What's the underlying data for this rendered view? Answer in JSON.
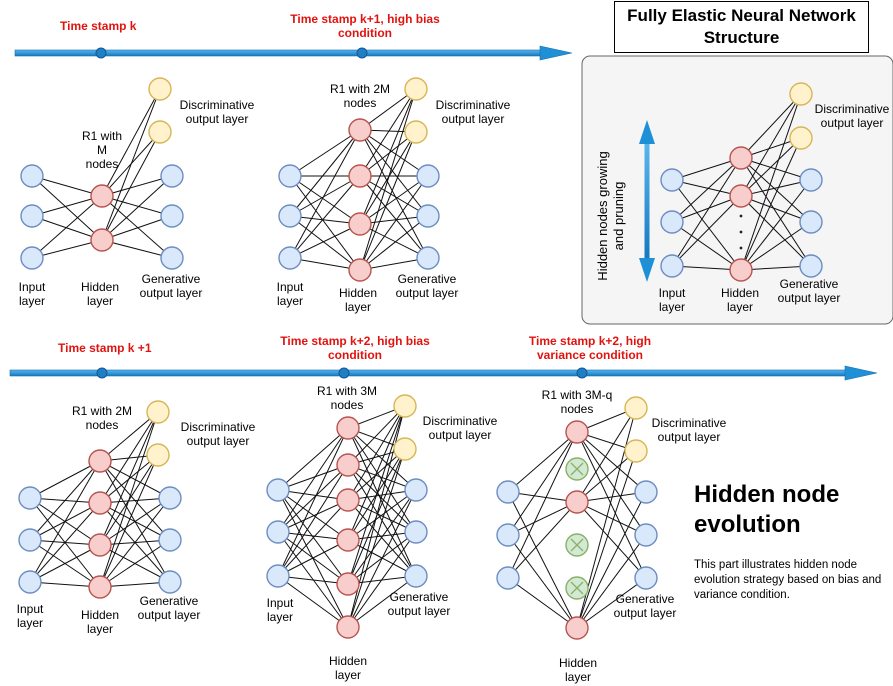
{
  "title": "Fully Elastic Neural Network Structure",
  "timeline_top": {
    "ts_k": "Time stamp k",
    "ts_k1_high_bias": "Time stamp k+1, high bias condition"
  },
  "timeline_bottom": {
    "ts_k1": "Time stamp k +1",
    "ts_k2_high_bias": "Time stamp k+2, high bias condition",
    "ts_k2_high_var": "Time stamp k+2, high variance condition"
  },
  "labels": {
    "input_layer": "Input layer",
    "hidden_layer": "Hidden layer",
    "generative_output": "Generative output layer",
    "discriminative_output": "Discriminative output layer",
    "r1_m": "R1 with M nodes",
    "r1_2m": "R1 with 2M nodes",
    "r1_3m": "R1 with 3M nodes",
    "r1_3mq": "R1 with 3M-q nodes",
    "growing_pruning": "Hidden nodes growing and pruning",
    "ellipsis": "·"
  },
  "section": {
    "heading": "Hidden node evolution",
    "description": "This part illustrates hidden node evolution strategy based on bias and variance condition."
  },
  "colors": {
    "input_fill": "#dae8fc",
    "input_stroke": "#6c8ebf",
    "hidden_fill": "#f8cecc",
    "hidden_stroke": "#b85450",
    "disc_fill": "#fff2cc",
    "disc_stroke": "#d6b656",
    "pruned_fill": "#d5e8d4",
    "pruned_stroke": "#82b366",
    "arrow": "#1f8fd6",
    "timestamp_text": "#e0140f"
  }
}
